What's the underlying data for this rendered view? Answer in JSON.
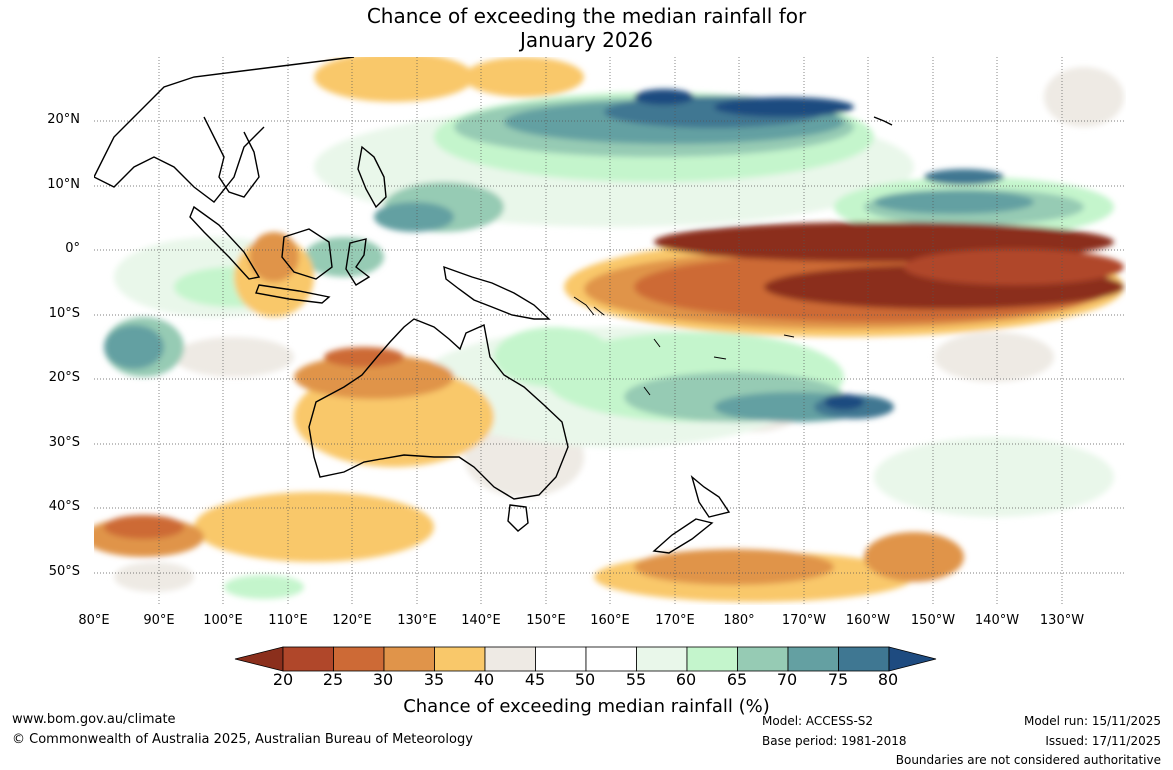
{
  "title": {
    "line1": "Chance of exceeding the median rainfall for",
    "line2": "January 2026"
  },
  "map": {
    "lat_labels": [
      "20°N",
      "10°N",
      "0°",
      "10°S",
      "20°S",
      "30°S",
      "40°S",
      "50°S"
    ],
    "lon_labels": [
      "80°E",
      "90°E",
      "100°E",
      "110°E",
      "120°E",
      "130°E",
      "140°E",
      "150°E",
      "160°E",
      "170°E",
      "180°",
      "170°W",
      "160°W",
      "150°W",
      "140°W",
      "130°W"
    ],
    "extent": {
      "lon_min": 80,
      "lon_max": 240,
      "lat_min": -55,
      "lat_max": 30
    }
  },
  "colorbar": {
    "ticks": [
      "20",
      "25",
      "30",
      "35",
      "40",
      "45",
      "50",
      "55",
      "60",
      "65",
      "70",
      "75",
      "80"
    ],
    "colors": [
      "#8b2f1c",
      "#b0472a",
      "#cd6a36",
      "#e0944a",
      "#f9c86a",
      "#eeeae4",
      "#ffffff",
      "#ffffff",
      "#e9f7ea",
      "#c4f5cc",
      "#96cbb4",
      "#64a0a2",
      "#3f7792",
      "#1e4b80"
    ],
    "label": "Chance of exceeding median rainfall (%)"
  },
  "footer": {
    "website": "www.bom.gov.au/climate",
    "copyright": "© Commonwealth of Australia 2025, Australian Bureau of Meteorology",
    "model": "Model: ACCESS-S2",
    "base_period": "Base period: 1981-2018",
    "model_run": "Model run: 15/11/2025",
    "issued": "Issued: 17/11/2025",
    "disclaimer": "Boundaries are not considered authoritative"
  }
}
